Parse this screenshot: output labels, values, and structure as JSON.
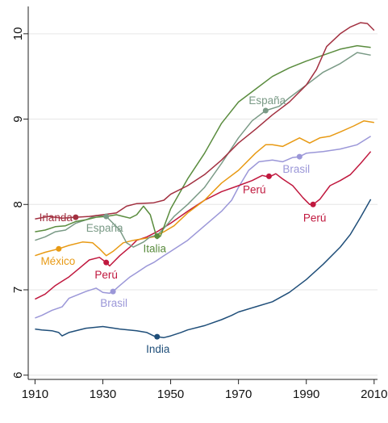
{
  "chart_data": {
    "type": "line",
    "title": "",
    "xlabel": "",
    "ylabel": "",
    "xlim": [
      1908,
      2011
    ],
    "ylim": [
      5.95,
      10.32
    ],
    "xticks": [
      1910,
      1930,
      1950,
      1970,
      1990,
      2010
    ],
    "yticks": [
      6,
      7,
      8,
      9,
      10
    ],
    "grid": true,
    "legend": "none",
    "series": [
      {
        "color": "#1f4e79",
        "points": [
          [
            1910,
            6.54
          ],
          [
            1912,
            6.53
          ],
          [
            1915,
            6.52
          ],
          [
            1917,
            6.5
          ],
          [
            1918,
            6.46
          ],
          [
            1920,
            6.5
          ],
          [
            1925,
            6.55
          ],
          [
            1930,
            6.57
          ],
          [
            1935,
            6.54
          ],
          [
            1940,
            6.52
          ],
          [
            1943,
            6.5
          ],
          [
            1945,
            6.46
          ],
          [
            1946,
            6.45
          ],
          [
            1948,
            6.44
          ],
          [
            1950,
            6.46
          ],
          [
            1953,
            6.5
          ],
          [
            1955,
            6.53
          ],
          [
            1960,
            6.58
          ],
          [
            1965,
            6.65
          ],
          [
            1968,
            6.7
          ],
          [
            1970,
            6.74
          ],
          [
            1975,
            6.8
          ],
          [
            1980,
            6.86
          ],
          [
            1985,
            6.97
          ],
          [
            1990,
            7.12
          ],
          [
            1995,
            7.3
          ],
          [
            2000,
            7.5
          ],
          [
            2003,
            7.65
          ],
          [
            2006,
            7.85
          ],
          [
            2009,
            8.06
          ]
        ]
      },
      {
        "color": "#9b97d8",
        "points": [
          [
            1910,
            6.67
          ],
          [
            1912,
            6.7
          ],
          [
            1915,
            6.76
          ],
          [
            1918,
            6.8
          ],
          [
            1920,
            6.9
          ],
          [
            1925,
            6.98
          ],
          [
            1928,
            7.02
          ],
          [
            1930,
            6.97
          ],
          [
            1932,
            6.96
          ],
          [
            1933,
            6.98
          ],
          [
            1935,
            7.05
          ],
          [
            1938,
            7.15
          ],
          [
            1940,
            7.2
          ],
          [
            1943,
            7.28
          ],
          [
            1945,
            7.32
          ],
          [
            1948,
            7.4
          ],
          [
            1950,
            7.45
          ],
          [
            1955,
            7.58
          ],
          [
            1960,
            7.75
          ],
          [
            1965,
            7.92
          ],
          [
            1968,
            8.05
          ],
          [
            1970,
            8.2
          ],
          [
            1973,
            8.4
          ],
          [
            1976,
            8.5
          ],
          [
            1980,
            8.52
          ],
          [
            1983,
            8.5
          ],
          [
            1986,
            8.55
          ],
          [
            1988,
            8.56
          ],
          [
            1990,
            8.6
          ],
          [
            1995,
            8.62
          ],
          [
            2000,
            8.65
          ],
          [
            2005,
            8.7
          ],
          [
            2009,
            8.8
          ]
        ]
      },
      {
        "color": "#c0183e",
        "points": [
          [
            1910,
            6.89
          ],
          [
            1913,
            6.95
          ],
          [
            1916,
            7.05
          ],
          [
            1918,
            7.1
          ],
          [
            1920,
            7.15
          ],
          [
            1923,
            7.25
          ],
          [
            1926,
            7.35
          ],
          [
            1929,
            7.38
          ],
          [
            1931,
            7.32
          ],
          [
            1932,
            7.28
          ],
          [
            1935,
            7.4
          ],
          [
            1938,
            7.5
          ],
          [
            1940,
            7.58
          ],
          [
            1943,
            7.62
          ],
          [
            1946,
            7.68
          ],
          [
            1950,
            7.78
          ],
          [
            1955,
            7.92
          ],
          [
            1960,
            8.05
          ],
          [
            1965,
            8.15
          ],
          [
            1970,
            8.22
          ],
          [
            1974,
            8.28
          ],
          [
            1977,
            8.34
          ],
          [
            1979,
            8.32
          ],
          [
            1981,
            8.36
          ],
          [
            1983,
            8.3
          ],
          [
            1986,
            8.22
          ],
          [
            1989,
            8.08
          ],
          [
            1991,
            8.0
          ],
          [
            1992,
            8.0
          ],
          [
            1994,
            8.06
          ],
          [
            1997,
            8.22
          ],
          [
            2000,
            8.28
          ],
          [
            2003,
            8.35
          ],
          [
            2006,
            8.48
          ],
          [
            2009,
            8.62
          ]
        ]
      },
      {
        "color": "#e89a14",
        "points": [
          [
            1910,
            7.4
          ],
          [
            1913,
            7.44
          ],
          [
            1917,
            7.48
          ],
          [
            1920,
            7.52
          ],
          [
            1924,
            7.56
          ],
          [
            1927,
            7.55
          ],
          [
            1929,
            7.48
          ],
          [
            1931,
            7.4
          ],
          [
            1933,
            7.45
          ],
          [
            1936,
            7.55
          ],
          [
            1939,
            7.58
          ],
          [
            1942,
            7.6
          ],
          [
            1945,
            7.62
          ],
          [
            1948,
            7.68
          ],
          [
            1951,
            7.75
          ],
          [
            1955,
            7.9
          ],
          [
            1960,
            8.05
          ],
          [
            1965,
            8.25
          ],
          [
            1970,
            8.4
          ],
          [
            1975,
            8.6
          ],
          [
            1978,
            8.7
          ],
          [
            1980,
            8.7
          ],
          [
            1983,
            8.68
          ],
          [
            1985,
            8.72
          ],
          [
            1988,
            8.78
          ],
          [
            1991,
            8.72
          ],
          [
            1994,
            8.78
          ],
          [
            1997,
            8.8
          ],
          [
            2000,
            8.85
          ],
          [
            2004,
            8.92
          ],
          [
            2007,
            8.98
          ],
          [
            2010,
            8.96
          ]
        ]
      },
      {
        "color": "#7a9a86",
        "points": [
          [
            1910,
            7.58
          ],
          [
            1913,
            7.62
          ],
          [
            1916,
            7.68
          ],
          [
            1919,
            7.7
          ],
          [
            1922,
            7.78
          ],
          [
            1925,
            7.82
          ],
          [
            1928,
            7.87
          ],
          [
            1931,
            7.86
          ],
          [
            1933,
            7.78
          ],
          [
            1935,
            7.7
          ],
          [
            1937,
            7.55
          ],
          [
            1939,
            7.5
          ],
          [
            1942,
            7.56
          ],
          [
            1944,
            7.62
          ],
          [
            1946,
            7.64
          ],
          [
            1948,
            7.72
          ],
          [
            1951,
            7.86
          ],
          [
            1955,
            8.0
          ],
          [
            1960,
            8.2
          ],
          [
            1965,
            8.48
          ],
          [
            1970,
            8.78
          ],
          [
            1974,
            8.98
          ],
          [
            1978,
            9.1
          ],
          [
            1982,
            9.15
          ],
          [
            1985,
            9.25
          ],
          [
            1990,
            9.4
          ],
          [
            1995,
            9.55
          ],
          [
            2000,
            9.65
          ],
          [
            2005,
            9.78
          ],
          [
            2009,
            9.75
          ]
        ]
      },
      {
        "color": "#5a8c3e",
        "points": [
          [
            1910,
            7.68
          ],
          [
            1913,
            7.7
          ],
          [
            1916,
            7.74
          ],
          [
            1919,
            7.75
          ],
          [
            1922,
            7.8
          ],
          [
            1925,
            7.82
          ],
          [
            1928,
            7.85
          ],
          [
            1931,
            7.86
          ],
          [
            1934,
            7.88
          ],
          [
            1936,
            7.86
          ],
          [
            1938,
            7.84
          ],
          [
            1940,
            7.88
          ],
          [
            1942,
            7.98
          ],
          [
            1944,
            7.88
          ],
          [
            1946,
            7.6
          ],
          [
            1947,
            7.63
          ],
          [
            1950,
            7.95
          ],
          [
            1955,
            8.3
          ],
          [
            1960,
            8.6
          ],
          [
            1965,
            8.95
          ],
          [
            1970,
            9.2
          ],
          [
            1975,
            9.35
          ],
          [
            1980,
            9.5
          ],
          [
            1985,
            9.6
          ],
          [
            1990,
            9.68
          ],
          [
            1995,
            9.75
          ],
          [
            2000,
            9.82
          ],
          [
            2005,
            9.86
          ],
          [
            2009,
            9.84
          ]
        ]
      },
      {
        "color": "#a23040",
        "points": [
          [
            1910,
            7.83
          ],
          [
            1914,
            7.86
          ],
          [
            1918,
            7.84
          ],
          [
            1922,
            7.85
          ],
          [
            1926,
            7.86
          ],
          [
            1930,
            7.88
          ],
          [
            1934,
            7.9
          ],
          [
            1937,
            7.98
          ],
          [
            1940,
            8.01
          ],
          [
            1945,
            8.02
          ],
          [
            1948,
            8.05
          ],
          [
            1950,
            8.12
          ],
          [
            1955,
            8.22
          ],
          [
            1960,
            8.35
          ],
          [
            1965,
            8.52
          ],
          [
            1970,
            8.72
          ],
          [
            1975,
            8.88
          ],
          [
            1980,
            9.05
          ],
          [
            1985,
            9.2
          ],
          [
            1990,
            9.4
          ],
          [
            1993,
            9.58
          ],
          [
            1996,
            9.85
          ],
          [
            2000,
            10.0
          ],
          [
            2003,
            10.08
          ],
          [
            2006,
            10.13
          ],
          [
            2008,
            10.12
          ],
          [
            2010,
            10.04
          ]
        ]
      }
    ],
    "annotations": [
      {
        "text": "Irlanda",
        "x": 1922,
        "y": 7.85,
        "color": "#a23040",
        "anchor": "end",
        "dx": -4,
        "dy": 5
      },
      {
        "text": "España",
        "x": 1931,
        "y": 7.86,
        "color": "#7a9a86",
        "anchor": "middle",
        "dx": -2,
        "dy": 19
      },
      {
        "text": "México",
        "x": 1917,
        "y": 7.48,
        "color": "#e89a14",
        "anchor": "middle",
        "dx": -1,
        "dy": 20
      },
      {
        "text": "Perú",
        "x": 1931,
        "y": 7.32,
        "color": "#c0183e",
        "anchor": "middle",
        "dx": 0,
        "dy": 20
      },
      {
        "text": "Brasil",
        "x": 1933,
        "y": 6.98,
        "color": "#9b97d8",
        "anchor": "middle",
        "dx": 1,
        "dy": 19
      },
      {
        "text": "Italia",
        "x": 1946,
        "y": 7.63,
        "color": "#5a8c3e",
        "anchor": "middle",
        "dx": -3,
        "dy": 20
      },
      {
        "text": "India",
        "x": 1946,
        "y": 6.45,
        "color": "#1f4e79",
        "anchor": "middle",
        "dx": 1,
        "dy": 20
      },
      {
        "text": "España",
        "x": 1978,
        "y": 9.1,
        "color": "#7a9a86",
        "anchor": "middle",
        "dx": 2,
        "dy": -8
      },
      {
        "text": "Perú",
        "x": 1979,
        "y": 8.33,
        "color": "#c0183e",
        "anchor": "end",
        "dx": -4,
        "dy": 21
      },
      {
        "text": "Brasil",
        "x": 1988,
        "y": 8.56,
        "color": "#9b97d8",
        "anchor": "middle",
        "dx": -4,
        "dy": 20
      },
      {
        "text": "Perú",
        "x": 1992,
        "y": 8.0,
        "color": "#c0183e",
        "anchor": "middle",
        "dx": 2,
        "dy": 21
      }
    ]
  }
}
